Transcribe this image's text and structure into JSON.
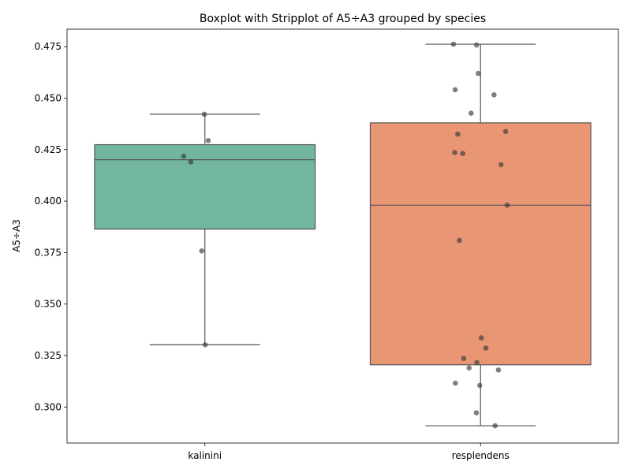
{
  "chart_data": {
    "type": "box",
    "title": "Boxplot with Stripplot of A5÷A3 grouped by species",
    "xlabel": "",
    "ylabel": "A5÷A3",
    "ylim": [
      0.2825,
      0.4835
    ],
    "yticks": [
      0.3,
      0.325,
      0.35,
      0.375,
      0.4,
      0.425,
      0.45,
      0.475
    ],
    "ytick_labels": [
      "0.300",
      "0.325",
      "0.350",
      "0.375",
      "0.400",
      "0.425",
      "0.450",
      "0.475"
    ],
    "categories": [
      "kalinini",
      "resplendens"
    ],
    "grid": false,
    "legend": "none",
    "groups": [
      {
        "category": "kalinini",
        "color": "#72b6a1",
        "whisker_low": 0.3302,
        "q1": 0.3864,
        "median": 0.4201,
        "q3": 0.4274,
        "whisker_high": 0.4422,
        "points": [
          0.4422,
          0.4294,
          0.4218,
          0.419,
          0.3758,
          0.3302
        ]
      },
      {
        "category": "resplendens",
        "color": "#e99675",
        "whisker_low": 0.2909,
        "q1": 0.3205,
        "median": 0.398,
        "q3": 0.438,
        "whisker_high": 0.4762,
        "points": [
          0.4762,
          0.4758,
          0.462,
          0.4541,
          0.4516,
          0.4427,
          0.4338,
          0.4325,
          0.4236,
          0.4231,
          0.4177,
          0.398,
          0.3809,
          0.3336,
          0.3286,
          0.3236,
          0.3216,
          0.319,
          0.318,
          0.3116,
          0.3105,
          0.2972,
          0.2909
        ]
      }
    ]
  },
  "style": {
    "box_edge_color": "#555555",
    "point_color": "#3a3a3a"
  }
}
